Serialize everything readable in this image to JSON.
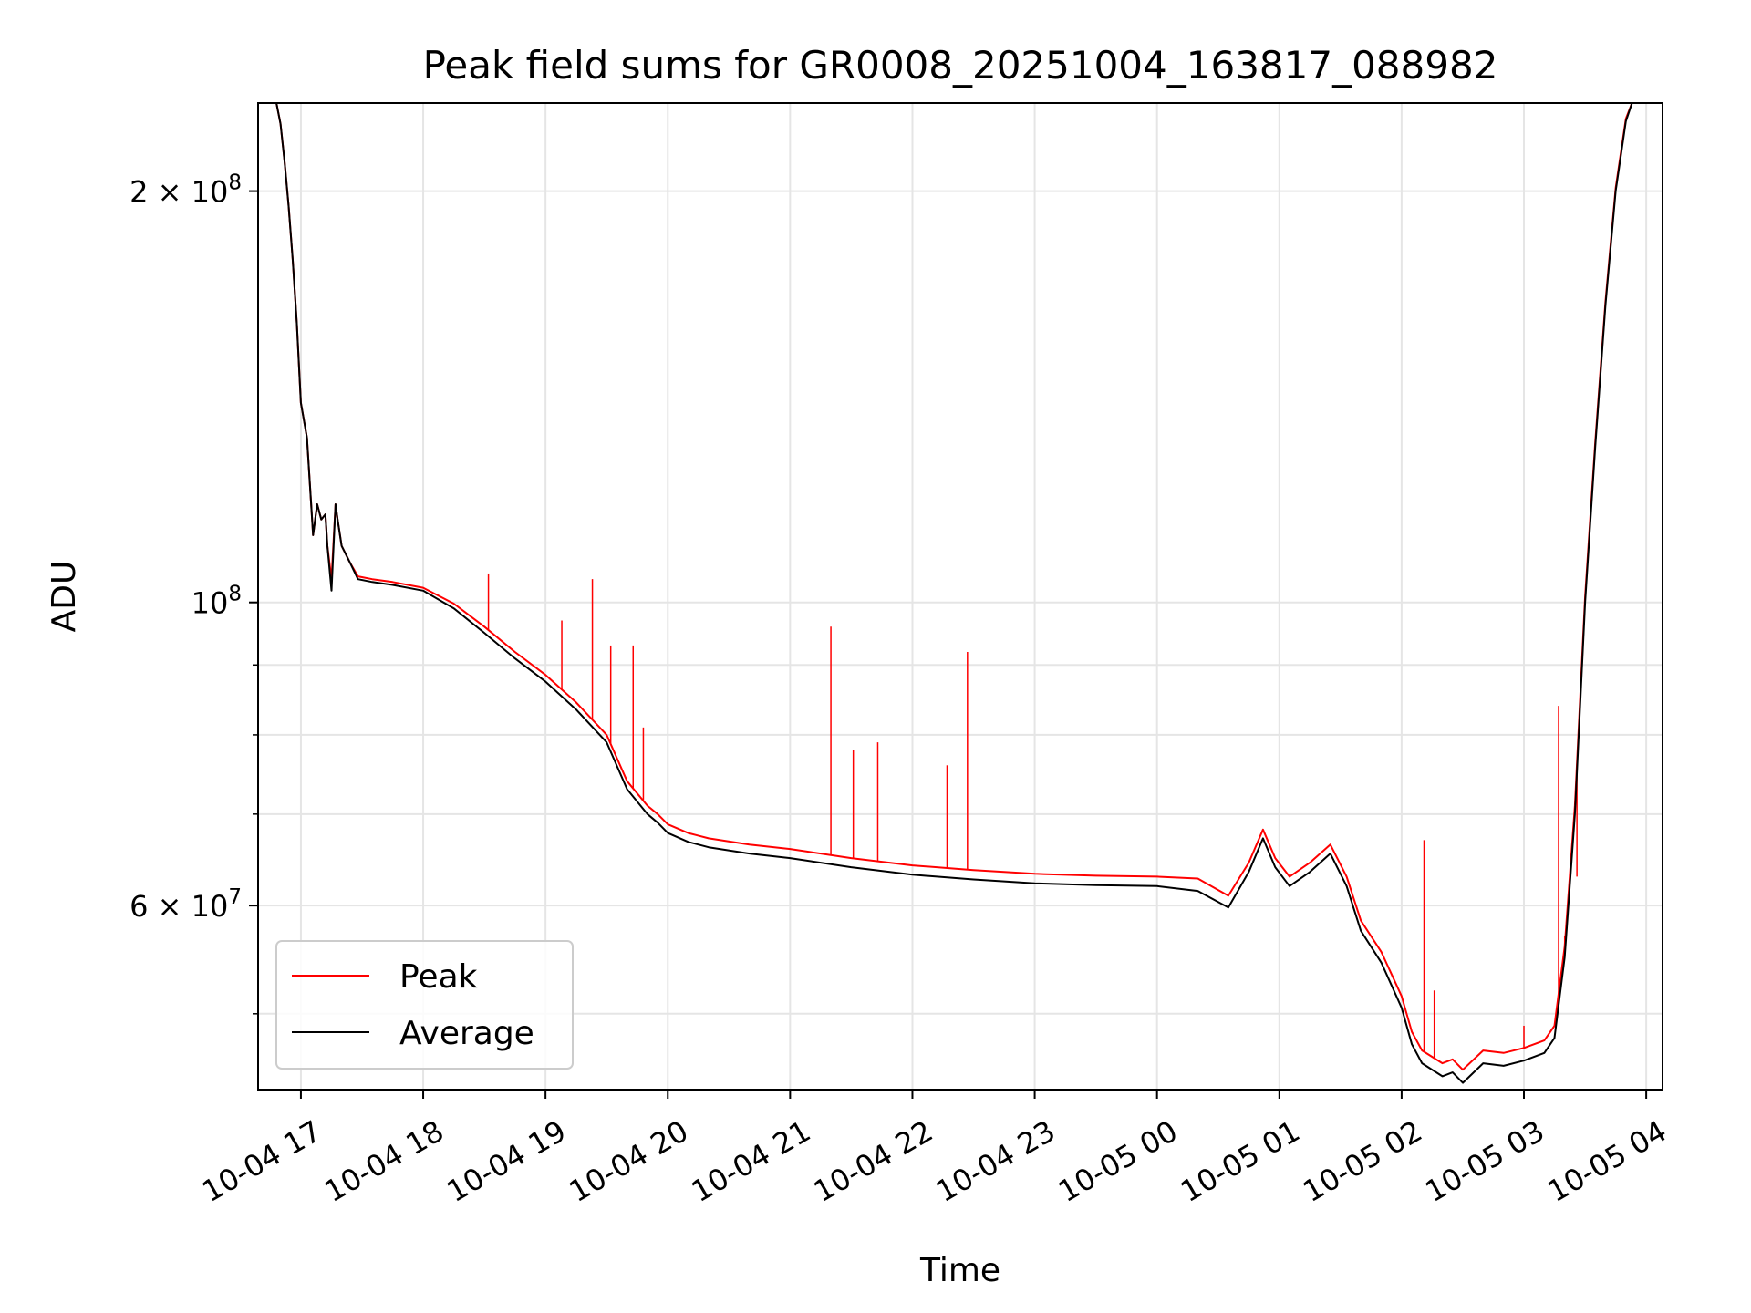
{
  "chart_data": {
    "type": "line",
    "title": "Peak field sums for GR0008_20251004_163817_088982",
    "xlabel": "Time",
    "ylabel": "ADU",
    "y_scale": "log",
    "ylim": [
      44000000,
      232000000
    ],
    "xlim": [
      "2025-10-04T16:39",
      "2025-10-05T04:08"
    ],
    "grid": true,
    "legend_position": "lower-left",
    "x_ticks": [
      {
        "t": "2025-10-04T17:00",
        "label": "10-04 17"
      },
      {
        "t": "2025-10-04T18:00",
        "label": "10-04 18"
      },
      {
        "t": "2025-10-04T19:00",
        "label": "10-04 19"
      },
      {
        "t": "2025-10-04T20:00",
        "label": "10-04 20"
      },
      {
        "t": "2025-10-04T21:00",
        "label": "10-04 21"
      },
      {
        "t": "2025-10-04T22:00",
        "label": "10-04 22"
      },
      {
        "t": "2025-10-04T23:00",
        "label": "10-04 23"
      },
      {
        "t": "2025-10-05T00:00",
        "label": "10-05 00"
      },
      {
        "t": "2025-10-05T01:00",
        "label": "10-05 01"
      },
      {
        "t": "2025-10-05T02:00",
        "label": "10-05 02"
      },
      {
        "t": "2025-10-05T03:00",
        "label": "10-05 03"
      },
      {
        "t": "2025-10-05T04:00",
        "label": "10-05 04"
      }
    ],
    "y_major_ticks": [
      {
        "value": 200000000,
        "mant": "2",
        "label": "2 × 10⁸"
      },
      {
        "value": 100000000,
        "mant": "",
        "label": "10⁸"
      },
      {
        "value": 60000000,
        "mant": "6",
        "label": "6 × 10⁷"
      }
    ],
    "y_minor_ticks": [
      50000000,
      70000000,
      80000000,
      90000000
    ],
    "series": [
      {
        "name": "Average",
        "color": "#000000",
        "x": [
          "2025-10-04T16:48",
          "2025-10-04T16:50",
          "2025-10-04T16:52",
          "2025-10-04T16:54",
          "2025-10-04T16:56",
          "2025-10-04T16:58",
          "2025-10-04T17:00",
          "2025-10-04T17:03",
          "2025-10-04T17:06",
          "2025-10-04T17:08",
          "2025-10-04T17:10",
          "2025-10-04T17:12",
          "2025-10-04T17:13",
          "2025-10-04T17:15",
          "2025-10-04T17:17",
          "2025-10-04T17:18",
          "2025-10-04T17:20",
          "2025-10-04T17:24",
          "2025-10-04T17:28",
          "2025-10-04T17:35",
          "2025-10-04T17:45",
          "2025-10-04T18:00",
          "2025-10-04T18:15",
          "2025-10-04T18:30",
          "2025-10-04T18:45",
          "2025-10-04T19:00",
          "2025-10-04T19:15",
          "2025-10-04T19:30",
          "2025-10-04T19:40",
          "2025-10-04T19:50",
          "2025-10-04T19:55",
          "2025-10-04T20:00",
          "2025-10-04T20:10",
          "2025-10-04T20:20",
          "2025-10-04T20:40",
          "2025-10-04T21:00",
          "2025-10-04T21:30",
          "2025-10-04T22:00",
          "2025-10-04T22:30",
          "2025-10-04T23:00",
          "2025-10-04T23:30",
          "2025-10-05T00:00",
          "2025-10-05T00:20",
          "2025-10-05T00:35",
          "2025-10-05T00:45",
          "2025-10-05T00:52",
          "2025-10-05T00:58",
          "2025-10-05T01:05",
          "2025-10-05T01:15",
          "2025-10-05T01:25",
          "2025-10-05T01:33",
          "2025-10-05T01:40",
          "2025-10-05T01:50",
          "2025-10-05T02:00",
          "2025-10-05T02:05",
          "2025-10-05T02:10",
          "2025-10-05T02:20",
          "2025-10-05T02:25",
          "2025-10-05T02:30",
          "2025-10-05T02:40",
          "2025-10-05T02:50",
          "2025-10-05T03:00",
          "2025-10-05T03:10",
          "2025-10-05T03:15",
          "2025-10-05T03:20",
          "2025-10-05T03:25",
          "2025-10-05T03:30",
          "2025-10-05T03:35",
          "2025-10-05T03:40",
          "2025-10-05T03:45",
          "2025-10-05T03:50",
          "2025-10-05T03:53"
        ],
        "y": [
          232000000,
          224000000,
          210000000,
          195000000,
          178000000,
          160000000,
          140000000,
          132000000,
          112000000,
          118000000,
          115000000,
          116000000,
          110000000,
          102000000,
          118000000,
          115000000,
          110000000,
          107000000,
          104000000,
          103500000,
          103000000,
          102000000,
          99000000,
          95000000,
          91000000,
          87500000,
          83500000,
          79000000,
          73000000,
          70000000,
          69000000,
          67800000,
          66800000,
          66200000,
          65500000,
          65000000,
          64000000,
          63200000,
          62700000,
          62300000,
          62100000,
          62000000,
          61500000,
          59800000,
          63500000,
          67200000,
          64000000,
          62000000,
          63500000,
          65500000,
          62000000,
          57500000,
          54500000,
          50500000,
          47500000,
          46000000,
          45000000,
          45300000,
          44500000,
          46000000,
          45800000,
          46200000,
          46800000,
          48000000,
          55000000,
          70000000,
          100000000,
          130000000,
          165000000,
          200000000,
          225000000,
          232000000
        ]
      },
      {
        "name": "Peak",
        "color": "#ff0000",
        "x": [
          "2025-10-04T16:48",
          "2025-10-04T16:50",
          "2025-10-04T16:52",
          "2025-10-04T16:54",
          "2025-10-04T16:56",
          "2025-10-04T16:58",
          "2025-10-04T17:00",
          "2025-10-04T17:03",
          "2025-10-04T17:06",
          "2025-10-04T17:08",
          "2025-10-04T17:10",
          "2025-10-04T17:12",
          "2025-10-04T17:13",
          "2025-10-04T17:15",
          "2025-10-04T17:17",
          "2025-10-04T17:18",
          "2025-10-04T17:20",
          "2025-10-04T17:24",
          "2025-10-04T17:28",
          "2025-10-04T17:35",
          "2025-10-04T17:45",
          "2025-10-04T18:00",
          "2025-10-04T18:15",
          "2025-10-04T18:30",
          "2025-10-04T18:45",
          "2025-10-04T19:00",
          "2025-10-04T19:15",
          "2025-10-04T19:30",
          "2025-10-04T19:40",
          "2025-10-04T19:50",
          "2025-10-04T19:55",
          "2025-10-04T20:00",
          "2025-10-04T20:10",
          "2025-10-04T20:20",
          "2025-10-04T20:40",
          "2025-10-04T21:00",
          "2025-10-04T21:30",
          "2025-10-04T22:00",
          "2025-10-04T22:30",
          "2025-10-04T23:00",
          "2025-10-04T23:30",
          "2025-10-05T00:00",
          "2025-10-05T00:20",
          "2025-10-05T00:35",
          "2025-10-05T00:45",
          "2025-10-05T00:52",
          "2025-10-05T00:58",
          "2025-10-05T01:05",
          "2025-10-05T01:15",
          "2025-10-05T01:25",
          "2025-10-05T01:33",
          "2025-10-05T01:40",
          "2025-10-05T01:50",
          "2025-10-05T02:00",
          "2025-10-05T02:05",
          "2025-10-05T02:10",
          "2025-10-05T02:20",
          "2025-10-05T02:25",
          "2025-10-05T02:30",
          "2025-10-05T02:40",
          "2025-10-05T02:50",
          "2025-10-05T03:00",
          "2025-10-05T03:10",
          "2025-10-05T03:15",
          "2025-10-05T03:20",
          "2025-10-05T03:25",
          "2025-10-05T03:30",
          "2025-10-05T03:35",
          "2025-10-05T03:40",
          "2025-10-05T03:45",
          "2025-10-05T03:50",
          "2025-10-05T03:53"
        ],
        "y": [
          232000000,
          224000000,
          210000000,
          195000000,
          178000000,
          160000000,
          140000000,
          132000000,
          112000000,
          118000000,
          115000000,
          116000000,
          110000000,
          104000000,
          118000000,
          115000000,
          110000000,
          107000000,
          104500000,
          104000000,
          103500000,
          102500000,
          99800000,
          96000000,
          92000000,
          88500000,
          84500000,
          80000000,
          74000000,
          71000000,
          70000000,
          68800000,
          67800000,
          67200000,
          66500000,
          66000000,
          65000000,
          64200000,
          63700000,
          63300000,
          63100000,
          63000000,
          62800000,
          61000000,
          64500000,
          68200000,
          65000000,
          63000000,
          64500000,
          66500000,
          63000000,
          58500000,
          55500000,
          51500000,
          48500000,
          47000000,
          46000000,
          46300000,
          45500000,
          47000000,
          46800000,
          47200000,
          47800000,
          49000000,
          56000000,
          71000000,
          101000000,
          131000000,
          166000000,
          201000000,
          226000000,
          232000000
        ],
        "spikes": [
          {
            "t": "2025-10-04T18:32",
            "y": 105000000
          },
          {
            "t": "2025-10-04T19:08",
            "y": 97000000
          },
          {
            "t": "2025-10-04T19:23",
            "y": 104000000
          },
          {
            "t": "2025-10-04T19:32",
            "y": 93000000
          },
          {
            "t": "2025-10-04T19:43",
            "y": 93000000
          },
          {
            "t": "2025-10-04T19:48",
            "y": 81000000
          },
          {
            "t": "2025-10-04T21:20",
            "y": 96000000
          },
          {
            "t": "2025-10-04T21:31",
            "y": 78000000
          },
          {
            "t": "2025-10-04T21:43",
            "y": 79000000
          },
          {
            "t": "2025-10-04T22:17",
            "y": 76000000
          },
          {
            "t": "2025-10-04T22:27",
            "y": 92000000
          },
          {
            "t": "2025-10-05T02:11",
            "y": 67000000
          },
          {
            "t": "2025-10-05T02:16",
            "y": 52000000
          },
          {
            "t": "2025-10-05T03:00",
            "y": 49000000
          },
          {
            "t": "2025-10-05T03:17",
            "y": 84000000
          },
          {
            "t": "2025-10-05T03:20",
            "y": 57000000
          },
          {
            "t": "2025-10-05T03:26",
            "y": 63000000
          }
        ]
      }
    ],
    "legend": [
      {
        "name": "Peak",
        "color": "#ff0000"
      },
      {
        "name": "Average",
        "color": "#000000"
      }
    ]
  }
}
